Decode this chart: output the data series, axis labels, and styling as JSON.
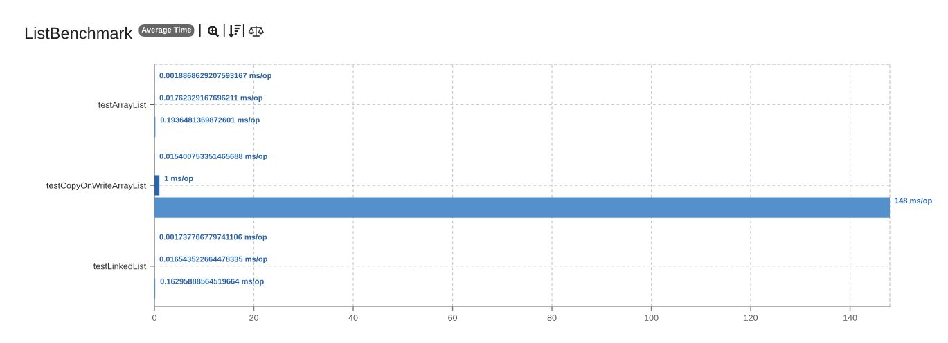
{
  "chart_data": {
    "type": "bar",
    "orientation": "horizontal",
    "title": "ListBenchmark",
    "subtitle": "Average Time",
    "categories": [
      "testArrayList",
      "testCopyOnWriteArrayList",
      "testLinkedList"
    ],
    "series": [
      {
        "color": "#2a4a6e",
        "values": [
          0.0018868629207593167,
          0.015400753351465688,
          0.001737766779741106
        ],
        "value_labels": [
          "0.0018868629207593167 ms/op",
          "0.015400753351465688 ms/op",
          "0.001737766779741106 ms/op"
        ]
      },
      {
        "color": "#2c65aa",
        "values": [
          0.01762329167696211,
          1,
          0.016543522664478335
        ],
        "value_labels": [
          "0.01762329167696211 ms/op",
          "1 ms/op",
          "0.016543522664478335 ms/op"
        ]
      },
      {
        "color": "#5490cc",
        "values": [
          0.1936481369872601,
          148,
          0.16295888564519664
        ],
        "value_labels": [
          "0.1936481369872601 ms/op",
          "148 ms/op",
          "0.16295888564519664 ms/op"
        ]
      }
    ],
    "xlim": [
      0,
      148
    ],
    "xticks": [
      0,
      20,
      40,
      60,
      80,
      100,
      120,
      140
    ],
    "grid": true,
    "legend": false
  }
}
